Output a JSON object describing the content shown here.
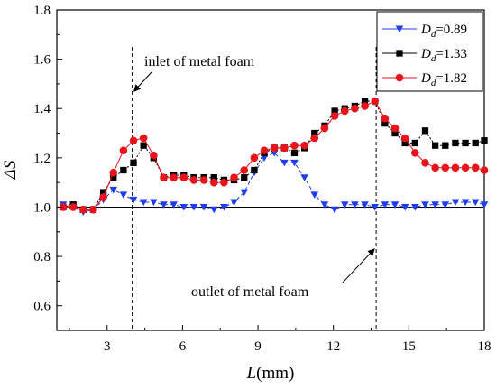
{
  "chart_data": {
    "type": "line",
    "xlabel": "L(mm)",
    "ylabel": "ΔS",
    "xlim": [
      1,
      18
    ],
    "ylim": [
      0.5,
      1.8
    ],
    "xticks": [
      3,
      6,
      9,
      12,
      15,
      18
    ],
    "yticks": [
      0.6,
      0.8,
      1.0,
      1.2,
      1.4,
      1.6,
      1.8
    ],
    "grid": false,
    "legend_position": "top-right",
    "reference_line": {
      "y": 1.0,
      "color": "#000000"
    },
    "vertical_markers": [
      4.0,
      13.7
    ],
    "annotations": [
      {
        "text": "inlet of metal foam",
        "target": {
          "x": 4.0,
          "y": 1.47
        }
      },
      {
        "text": "outlet of metal foam",
        "target": {
          "x": 13.7,
          "y": 0.83
        }
      }
    ],
    "series": [
      {
        "name": "Dd=0.89",
        "legend_base": "D",
        "legend_sub": "d",
        "legend_value": "=0.89",
        "color": "#1f3df0",
        "marker": "triangle-down",
        "x": [
          1.25,
          1.65,
          2.05,
          2.45,
          2.85,
          3.25,
          3.65,
          4.05,
          4.45,
          4.85,
          5.25,
          5.65,
          6.05,
          6.45,
          6.85,
          7.25,
          7.65,
          8.05,
          8.45,
          8.85,
          9.25,
          9.65,
          10.05,
          10.45,
          10.85,
          11.25,
          11.65,
          12.05,
          12.45,
          12.85,
          13.25,
          13.65,
          14.05,
          14.45,
          14.85,
          15.25,
          15.65,
          16.05,
          16.45,
          16.85,
          17.25,
          17.65,
          18.0
        ],
        "y": [
          1.01,
          1.0,
          0.98,
          0.99,
          1.03,
          1.07,
          1.05,
          1.03,
          1.02,
          1.02,
          1.01,
          1.01,
          1.0,
          1.0,
          1.0,
          0.99,
          1.0,
          1.02,
          1.06,
          1.14,
          1.2,
          1.22,
          1.18,
          1.18,
          1.12,
          1.05,
          1.01,
          0.99,
          1.01,
          1.01,
          1.01,
          1.0,
          1.01,
          1.01,
          1.0,
          1.0,
          1.01,
          1.01,
          1.01,
          1.02,
          1.02,
          1.02,
          1.01
        ]
      },
      {
        "name": "Dd=1.33",
        "legend_base": "D",
        "legend_sub": "d",
        "legend_value": "=1.33",
        "color": "#000000",
        "marker": "square",
        "x": [
          1.25,
          1.65,
          2.05,
          2.45,
          2.85,
          3.25,
          3.65,
          4.05,
          4.45,
          4.85,
          5.25,
          5.65,
          6.05,
          6.45,
          6.85,
          7.25,
          7.65,
          8.05,
          8.45,
          8.85,
          9.25,
          9.65,
          10.05,
          10.45,
          10.85,
          11.25,
          11.65,
          12.05,
          12.45,
          12.85,
          13.25,
          13.65,
          14.05,
          14.45,
          14.85,
          15.25,
          15.65,
          16.05,
          16.45,
          16.85,
          17.25,
          17.65,
          18.0
        ],
        "y": [
          1.0,
          1.01,
          0.99,
          0.99,
          1.06,
          1.12,
          1.15,
          1.18,
          1.25,
          1.2,
          1.12,
          1.13,
          1.13,
          1.12,
          1.12,
          1.12,
          1.11,
          1.11,
          1.12,
          1.15,
          1.22,
          1.24,
          1.24,
          1.22,
          1.24,
          1.3,
          1.33,
          1.39,
          1.4,
          1.41,
          1.43,
          1.43,
          1.34,
          1.3,
          1.26,
          1.26,
          1.31,
          1.25,
          1.25,
          1.26,
          1.26,
          1.26,
          1.27
        ]
      },
      {
        "name": "Dd=1.82",
        "legend_base": "D",
        "legend_sub": "d",
        "legend_value": "=1.82",
        "color": "#e8141b",
        "marker": "circle",
        "x": [
          1.25,
          1.65,
          2.05,
          2.45,
          2.85,
          3.25,
          3.65,
          4.05,
          4.45,
          4.85,
          5.25,
          5.65,
          6.05,
          6.45,
          6.85,
          7.25,
          7.65,
          8.05,
          8.45,
          8.85,
          9.25,
          9.65,
          10.05,
          10.45,
          10.85,
          11.25,
          11.65,
          12.05,
          12.45,
          12.85,
          13.25,
          13.65,
          14.05,
          14.45,
          14.85,
          15.25,
          15.65,
          16.05,
          16.45,
          16.85,
          17.25,
          17.65,
          18.0
        ],
        "y": [
          1.0,
          1.0,
          0.99,
          0.99,
          1.04,
          1.14,
          1.23,
          1.27,
          1.28,
          1.21,
          1.12,
          1.12,
          1.12,
          1.11,
          1.11,
          1.1,
          1.1,
          1.12,
          1.15,
          1.2,
          1.23,
          1.24,
          1.24,
          1.25,
          1.25,
          1.28,
          1.32,
          1.37,
          1.39,
          1.4,
          1.41,
          1.43,
          1.36,
          1.32,
          1.28,
          1.22,
          1.18,
          1.16,
          1.16,
          1.16,
          1.16,
          1.16,
          1.15
        ]
      }
    ]
  }
}
